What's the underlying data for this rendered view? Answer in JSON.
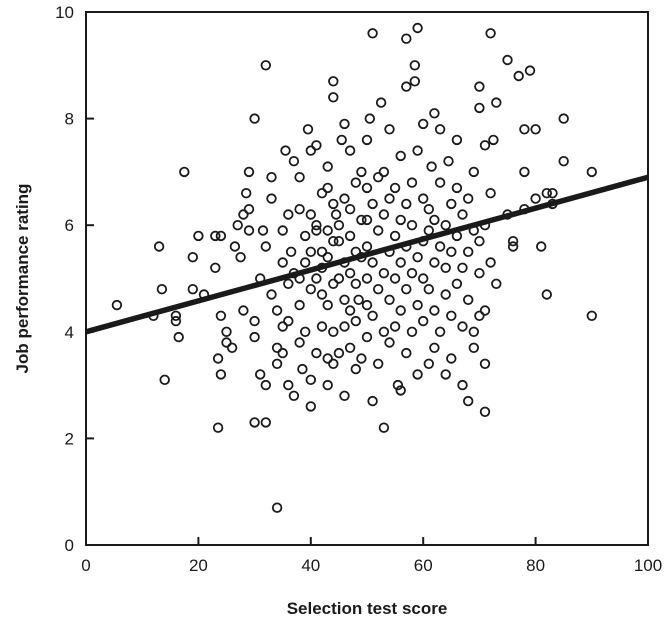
{
  "chart_data": {
    "type": "scatter",
    "title": "",
    "xlabel": "Selection test score",
    "ylabel": "Job performance rating",
    "xlim": [
      0,
      100
    ],
    "ylim": [
      0,
      10
    ],
    "xticks": [
      0,
      20,
      40,
      60,
      80,
      100
    ],
    "yticks": [
      0,
      2,
      4,
      6,
      8,
      10
    ],
    "x_tick_labels": [
      "0",
      "20",
      "40",
      "60",
      "80",
      "100"
    ],
    "y_tick_labels": [
      "0",
      "2",
      "4",
      "6",
      "8",
      "10"
    ],
    "grid": false,
    "legend": "none",
    "points": [
      [
        5.5,
        4.5
      ],
      [
        12,
        4.3
      ],
      [
        13,
        5.6
      ],
      [
        13.5,
        4.8
      ],
      [
        14,
        3.1
      ],
      [
        16,
        4.2
      ],
      [
        16.5,
        3.9
      ],
      [
        16,
        4.3
      ],
      [
        17.5,
        7.0
      ],
      [
        19,
        4.8
      ],
      [
        19,
        5.4
      ],
      [
        20,
        5.8
      ],
      [
        21,
        4.7
      ],
      [
        23,
        5.2
      ],
      [
        23,
        5.8
      ],
      [
        24,
        5.8
      ],
      [
        24,
        4.3
      ],
      [
        23.5,
        3.5
      ],
      [
        24,
        3.2
      ],
      [
        23.5,
        2.2
      ],
      [
        25,
        3.8
      ],
      [
        25,
        4.0
      ],
      [
        26,
        3.7
      ],
      [
        26.5,
        5.6
      ],
      [
        27,
        6.0
      ],
      [
        27.5,
        5.4
      ],
      [
        28,
        4.4
      ],
      [
        28,
        6.2
      ],
      [
        28.5,
        6.6
      ],
      [
        29,
        7.0
      ],
      [
        29,
        5.9
      ],
      [
        29,
        6.3
      ],
      [
        30,
        3.9
      ],
      [
        30,
        8.0
      ],
      [
        30,
        4.2
      ],
      [
        30,
        2.3
      ],
      [
        31,
        3.2
      ],
      [
        31,
        5.0
      ],
      [
        31.5,
        5.9
      ],
      [
        32,
        5.6
      ],
      [
        32,
        3.0
      ],
      [
        32,
        9.0
      ],
      [
        32,
        2.3
      ],
      [
        33,
        4.7
      ],
      [
        33,
        6.5
      ],
      [
        33,
        6.9
      ],
      [
        34,
        3.7
      ],
      [
        34,
        4.4
      ],
      [
        34,
        3.4
      ],
      [
        34,
        0.7
      ],
      [
        35,
        3.6
      ],
      [
        35,
        4.1
      ],
      [
        35,
        5.3
      ],
      [
        35,
        5.9
      ],
      [
        35.5,
        7.4
      ],
      [
        36,
        3.0
      ],
      [
        36,
        4.2
      ],
      [
        36,
        4.9
      ],
      [
        36,
        6.2
      ],
      [
        36.5,
        5.5
      ],
      [
        37,
        7.2
      ],
      [
        37,
        5.1
      ],
      [
        37,
        2.8
      ],
      [
        38,
        3.8
      ],
      [
        38,
        4.5
      ],
      [
        38,
        5.0
      ],
      [
        38,
        6.3
      ],
      [
        38,
        6.9
      ],
      [
        38.5,
        3.3
      ],
      [
        39,
        5.8
      ],
      [
        39,
        5.3
      ],
      [
        39,
        4.0
      ],
      [
        39.5,
        7.8
      ],
      [
        40,
        3.1
      ],
      [
        40,
        4.8
      ],
      [
        40,
        5.5
      ],
      [
        40,
        6.2
      ],
      [
        40,
        2.6
      ],
      [
        40,
        7.4
      ],
      [
        41,
        5.0
      ],
      [
        41,
        5.9
      ],
      [
        41,
        6.0
      ],
      [
        41,
        3.6
      ],
      [
        41,
        7.5
      ],
      [
        42,
        4.1
      ],
      [
        42,
        4.7
      ],
      [
        42,
        5.2
      ],
      [
        42,
        5.5
      ],
      [
        42,
        6.6
      ],
      [
        43,
        3.0
      ],
      [
        43,
        3.5
      ],
      [
        43,
        4.5
      ],
      [
        43,
        5.4
      ],
      [
        43,
        5.9
      ],
      [
        43,
        6.7
      ],
      [
        43,
        7.1
      ],
      [
        44,
        8.7
      ],
      [
        44,
        8.4
      ],
      [
        44,
        4.0
      ],
      [
        44,
        3.4
      ],
      [
        44,
        4.9
      ],
      [
        44,
        5.7
      ],
      [
        44,
        6.4
      ],
      [
        44.5,
        6.2
      ],
      [
        45,
        5.0
      ],
      [
        45,
        5.7
      ],
      [
        45,
        3.6
      ],
      [
        45,
        6.0
      ],
      [
        45.5,
        7.6
      ],
      [
        46,
        4.1
      ],
      [
        46,
        4.6
      ],
      [
        46,
        5.3
      ],
      [
        46,
        6.5
      ],
      [
        46,
        2.8
      ],
      [
        46,
        7.9
      ],
      [
        47,
        3.7
      ],
      [
        47,
        4.4
      ],
      [
        47,
        5.1
      ],
      [
        47,
        5.8
      ],
      [
        47,
        6.3
      ],
      [
        47,
        7.4
      ],
      [
        48,
        3.3
      ],
      [
        48,
        4.2
      ],
      [
        48,
        4.9
      ],
      [
        48,
        5.5
      ],
      [
        48,
        6.8
      ],
      [
        48.5,
        4.6
      ],
      [
        49,
        6.1
      ],
      [
        49,
        7.0
      ],
      [
        49,
        5.4
      ],
      [
        49,
        3.5
      ],
      [
        50,
        3.9
      ],
      [
        50,
        4.5
      ],
      [
        50,
        5.0
      ],
      [
        50,
        5.6
      ],
      [
        50,
        6.1
      ],
      [
        50,
        6.7
      ],
      [
        50,
        7.6
      ],
      [
        50.5,
        8.0
      ],
      [
        51,
        9.6
      ],
      [
        51,
        4.3
      ],
      [
        51,
        5.3
      ],
      [
        51,
        6.4
      ],
      [
        51,
        2.7
      ],
      [
        52,
        4.8
      ],
      [
        52,
        5.9
      ],
      [
        52,
        6.9
      ],
      [
        52,
        3.4
      ],
      [
        52.5,
        8.3
      ],
      [
        53,
        4.0
      ],
      [
        53,
        5.1
      ],
      [
        53,
        6.2
      ],
      [
        53,
        7.0
      ],
      [
        53,
        2.2
      ],
      [
        54,
        4.6
      ],
      [
        54,
        5.5
      ],
      [
        54,
        6.5
      ],
      [
        54,
        3.8
      ],
      [
        54,
        7.8
      ],
      [
        55,
        4.1
      ],
      [
        55,
        5.0
      ],
      [
        55,
        5.8
      ],
      [
        55,
        6.7
      ],
      [
        55.5,
        3.0
      ],
      [
        56,
        4.4
      ],
      [
        56,
        5.3
      ],
      [
        56,
        6.1
      ],
      [
        56,
        7.3
      ],
      [
        56,
        2.9
      ],
      [
        57,
        4.8
      ],
      [
        57,
        5.6
      ],
      [
        57,
        6.4
      ],
      [
        57,
        3.6
      ],
      [
        57,
        8.6
      ],
      [
        57,
        9.5
      ],
      [
        58,
        4.0
      ],
      [
        58,
        5.1
      ],
      [
        58,
        6.0
      ],
      [
        58,
        6.8
      ],
      [
        58.5,
        9.0
      ],
      [
        58.5,
        8.7
      ],
      [
        59,
        9.7
      ],
      [
        59,
        5.4
      ],
      [
        59,
        4.5
      ],
      [
        59,
        7.4
      ],
      [
        59,
        3.2
      ],
      [
        60,
        4.2
      ],
      [
        60,
        5.0
      ],
      [
        60,
        5.7
      ],
      [
        60,
        6.5
      ],
      [
        60,
        7.9
      ],
      [
        61,
        4.8
      ],
      [
        61,
        5.9
      ],
      [
        61,
        6.3
      ],
      [
        61,
        3.4
      ],
      [
        61.5,
        7.1
      ],
      [
        62,
        4.4
      ],
      [
        62,
        5.3
      ],
      [
        62,
        6.1
      ],
      [
        62,
        8.1
      ],
      [
        62,
        3.7
      ],
      [
        63,
        4.0
      ],
      [
        63,
        5.6
      ],
      [
        63,
        6.8
      ],
      [
        63,
        7.8
      ],
      [
        64,
        4.7
      ],
      [
        64,
        5.2
      ],
      [
        64,
        6.0
      ],
      [
        64,
        3.2
      ],
      [
        64.5,
        7.2
      ],
      [
        65,
        4.3
      ],
      [
        65,
        5.5
      ],
      [
        65,
        6.4
      ],
      [
        65,
        3.5
      ],
      [
        66,
        4.9
      ],
      [
        66,
        5.8
      ],
      [
        66,
        6.7
      ],
      [
        66,
        7.6
      ],
      [
        67,
        4.1
      ],
      [
        67,
        5.2
      ],
      [
        67,
        6.2
      ],
      [
        67,
        3.0
      ],
      [
        68,
        4.6
      ],
      [
        68,
        5.5
      ],
      [
        68,
        6.5
      ],
      [
        68,
        2.7
      ],
      [
        69,
        4.0
      ],
      [
        69,
        5.9
      ],
      [
        69,
        7.0
      ],
      [
        69,
        3.7
      ],
      [
        70,
        4.3
      ],
      [
        70,
        5.1
      ],
      [
        70,
        5.7
      ],
      [
        70,
        8.2
      ],
      [
        70,
        8.6
      ],
      [
        71,
        3.4
      ],
      [
        71,
        6.0
      ],
      [
        71,
        7.5
      ],
      [
        71,
        2.5
      ],
      [
        71,
        4.4
      ],
      [
        72,
        5.3
      ],
      [
        72,
        6.6
      ],
      [
        72,
        9.6
      ],
      [
        72.5,
        7.6
      ],
      [
        73,
        4.9
      ],
      [
        73,
        8.3
      ],
      [
        75,
        6.2
      ],
      [
        75,
        9.1
      ],
      [
        76,
        5.7
      ],
      [
        76,
        5.6
      ],
      [
        77,
        8.8
      ],
      [
        78,
        6.3
      ],
      [
        78,
        7.8
      ],
      [
        78,
        7.0
      ],
      [
        79,
        8.9
      ],
      [
        80,
        7.8
      ],
      [
        80,
        6.5
      ],
      [
        81,
        5.6
      ],
      [
        82,
        6.6
      ],
      [
        82,
        4.7
      ],
      [
        83,
        6.4
      ],
      [
        83,
        6.6
      ],
      [
        85,
        8.0
      ],
      [
        85,
        7.2
      ],
      [
        90,
        4.3
      ],
      [
        90,
        7.0
      ]
    ],
    "trend_line": {
      "x": [
        0,
        100
      ],
      "y": [
        4.0,
        6.9
      ]
    }
  }
}
